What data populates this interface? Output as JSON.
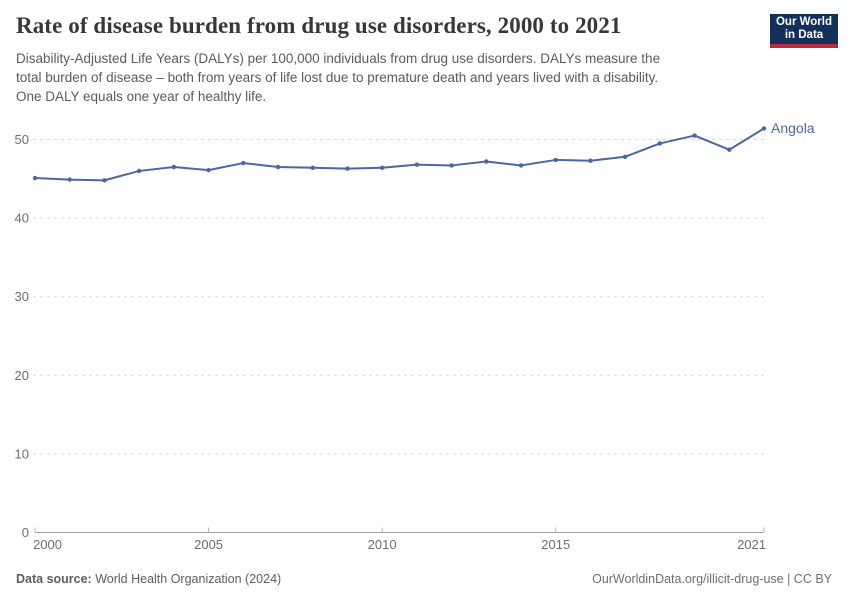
{
  "header": {
    "title": "Rate of disease burden from drug use disorders, 2000 to 2021",
    "subtitle_lines": [
      "Disability-Adjusted Life Years (DALYs) per 100,000 individuals from drug use disorders. DALYs measure the",
      "total burden of disease – both from years of life lost due to premature death and years lived with a disability.",
      "One DALY equals one year of healthy life."
    ],
    "logo_line1": "Our World",
    "logo_line2": "in Data"
  },
  "chart_data": {
    "type": "line",
    "title": "Rate of disease burden from drug use disorders, 2000 to 2021",
    "xlabel": "",
    "ylabel": "DALYs per 100,000 individuals",
    "x": [
      2000,
      2001,
      2002,
      2003,
      2004,
      2005,
      2006,
      2007,
      2008,
      2009,
      2010,
      2011,
      2012,
      2013,
      2014,
      2015,
      2016,
      2017,
      2018,
      2019,
      2020,
      2021
    ],
    "series": [
      {
        "name": "Angola",
        "color": "#4a67a4",
        "values": [
          45.1,
          44.9,
          44.8,
          46.0,
          46.5,
          46.1,
          47.0,
          46.5,
          46.4,
          46.3,
          46.4,
          46.8,
          46.7,
          47.2,
          46.7,
          47.4,
          47.3,
          47.8,
          49.5,
          50.5,
          48.7,
          51.4
        ]
      }
    ],
    "xlim": [
      2000,
      2021
    ],
    "ylim": [
      0,
      50
    ],
    "x_ticks": [
      2000,
      2005,
      2010,
      2015,
      2021
    ],
    "y_ticks": [
      0,
      10,
      20,
      30,
      40,
      50
    ],
    "grid": "horizontal-dashed",
    "legend": "entity-label-right-of-line",
    "colors": {
      "gridline": "#d9d9d9",
      "axis": "#a3a3a3",
      "tick": "#b5b5b5",
      "tick_label": "#6e6e6e"
    }
  },
  "footer": {
    "source_label": "Data source:",
    "source_value": " World Health Organization (2024)",
    "credit": "OurWorldinData.org/illicit-drug-use | CC BY"
  }
}
